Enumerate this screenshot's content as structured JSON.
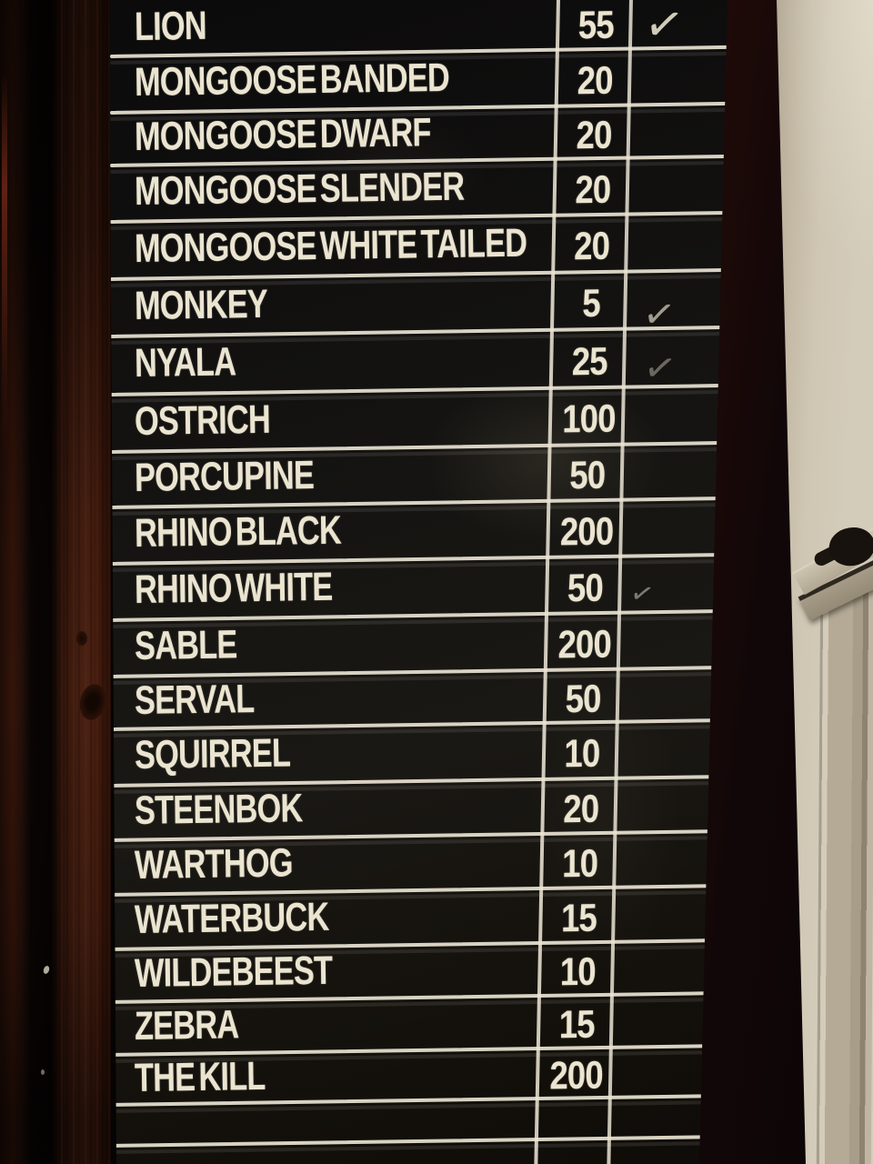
{
  "board": {
    "check_glyph": "✓",
    "rows": [
      {
        "name": "LION",
        "points": "55",
        "checked": true
      },
      {
        "name": "MONGOOSE BANDED",
        "points": "20",
        "checked": false
      },
      {
        "name": "MONGOOSE DWARF",
        "points": "20",
        "checked": false
      },
      {
        "name": "MONGOOSE SLENDER",
        "points": "20",
        "checked": false
      },
      {
        "name": "MONGOOSE WHITE TAILED",
        "points": "20",
        "checked": false
      },
      {
        "name": "MONKEY",
        "points": "5",
        "checked": true
      },
      {
        "name": "NYALA",
        "points": "25",
        "checked": true
      },
      {
        "name": "OSTRICH",
        "points": "100",
        "checked": false
      },
      {
        "name": "PORCUPINE",
        "points": "50",
        "checked": false
      },
      {
        "name": "RHINO BLACK",
        "points": "200",
        "checked": false
      },
      {
        "name": "RHINO WHITE",
        "points": "50",
        "checked": true
      },
      {
        "name": "SABLE",
        "points": "200",
        "checked": false
      },
      {
        "name": "SERVAL",
        "points": "50",
        "checked": false
      },
      {
        "name": "SQUIRREL",
        "points": "10",
        "checked": false
      },
      {
        "name": "STEENBOK",
        "points": "20",
        "checked": false
      },
      {
        "name": "WARTHOG",
        "points": "10",
        "checked": false
      },
      {
        "name": "WATERBUCK",
        "points": "15",
        "checked": false
      },
      {
        "name": "WILDEBEEST",
        "points": "10",
        "checked": false
      },
      {
        "name": "ZEBRA",
        "points": "15",
        "checked": false
      },
      {
        "name": "THE KILL",
        "points": "200",
        "checked": false
      }
    ]
  },
  "colors": {
    "board_background": "#121110",
    "grid_lines": "#e9e3d3",
    "board_text": "#eae4d0",
    "wood_frame": "#42190e",
    "wall": "#cdc4b1"
  }
}
